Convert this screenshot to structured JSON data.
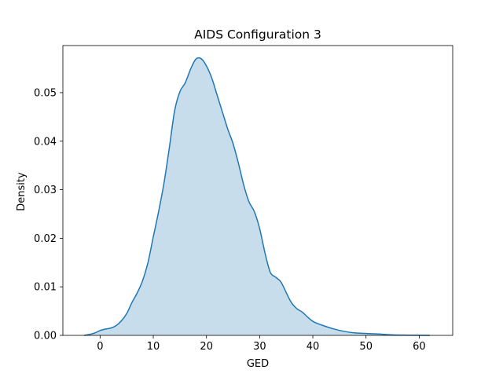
{
  "chart_data": {
    "type": "area",
    "title": "AIDS Configuration 3",
    "xlabel": "GED",
    "ylabel": "Density",
    "xlim": [
      -7.0,
      66.3
    ],
    "ylim": [
      0,
      0.0597
    ],
    "xticks": [
      0,
      10,
      20,
      30,
      40,
      50,
      60
    ],
    "yticks": [
      0.0,
      0.01,
      0.02,
      0.03,
      0.04,
      0.05
    ],
    "ytick_labels": [
      "0.00",
      "0.01",
      "0.02",
      "0.03",
      "0.04",
      "0.05"
    ],
    "grid": false,
    "legend": "none",
    "line_color": "#1f77b4",
    "fill_color": "#1f77b4",
    "fill_opacity": 0.25,
    "series": [
      {
        "x": [
          -3,
          -2,
          -1,
          0,
          1,
          2,
          3,
          4,
          5,
          6,
          7,
          8,
          9,
          10,
          11,
          12,
          13,
          14,
          15,
          16,
          17,
          18,
          19,
          20,
          21,
          22,
          23,
          24,
          25,
          26,
          27,
          28,
          29,
          30,
          31,
          32,
          33,
          34,
          35,
          36,
          37,
          38,
          39,
          40,
          41,
          42,
          44,
          46,
          48,
          50,
          52,
          55,
          58,
          62
        ],
        "y": [
          0.0,
          0.0002,
          0.0005,
          0.001,
          0.0013,
          0.0015,
          0.002,
          0.003,
          0.0045,
          0.0068,
          0.0088,
          0.0113,
          0.015,
          0.0203,
          0.0255,
          0.0313,
          0.0385,
          0.0462,
          0.0502,
          0.052,
          0.0548,
          0.0569,
          0.057,
          0.0555,
          0.053,
          0.0495,
          0.046,
          0.0425,
          0.0395,
          0.0355,
          0.031,
          0.0275,
          0.0255,
          0.022,
          0.017,
          0.013,
          0.012,
          0.011,
          0.0088,
          0.0067,
          0.0055,
          0.0048,
          0.0038,
          0.0029,
          0.0024,
          0.002,
          0.0013,
          0.0008,
          0.0005,
          0.0004,
          0.0003,
          0.0001,
          5e-05,
          0.0
        ]
      }
    ]
  }
}
